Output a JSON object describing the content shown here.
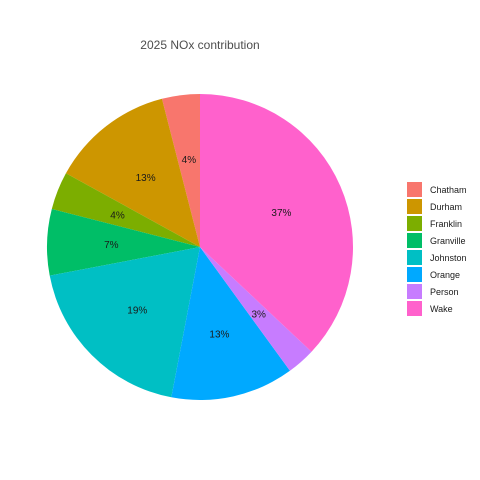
{
  "chart_data": {
    "type": "pie",
    "title": "2025 NOx contribution",
    "legend_position": "right",
    "start": "top",
    "direction": "counterclockwise",
    "slices": [
      {
        "name": "Chatham",
        "value": 4,
        "label": "4%",
        "color": "#F8766D"
      },
      {
        "name": "Durham",
        "value": 13,
        "label": "13%",
        "color": "#CD9600"
      },
      {
        "name": "Franklin",
        "value": 4,
        "label": "4%",
        "color": "#7CAE00"
      },
      {
        "name": "Granville",
        "value": 7,
        "label": "7%",
        "color": "#00BE67"
      },
      {
        "name": "Johnston",
        "value": 19,
        "label": "19%",
        "color": "#00BFC4"
      },
      {
        "name": "Orange",
        "value": 13,
        "label": "13%",
        "color": "#00A9FF"
      },
      {
        "name": "Person",
        "value": 3,
        "label": "3%",
        "color": "#C77CFF"
      },
      {
        "name": "Wake",
        "value": 37,
        "label": "37%",
        "color": "#FF61CC"
      }
    ]
  }
}
